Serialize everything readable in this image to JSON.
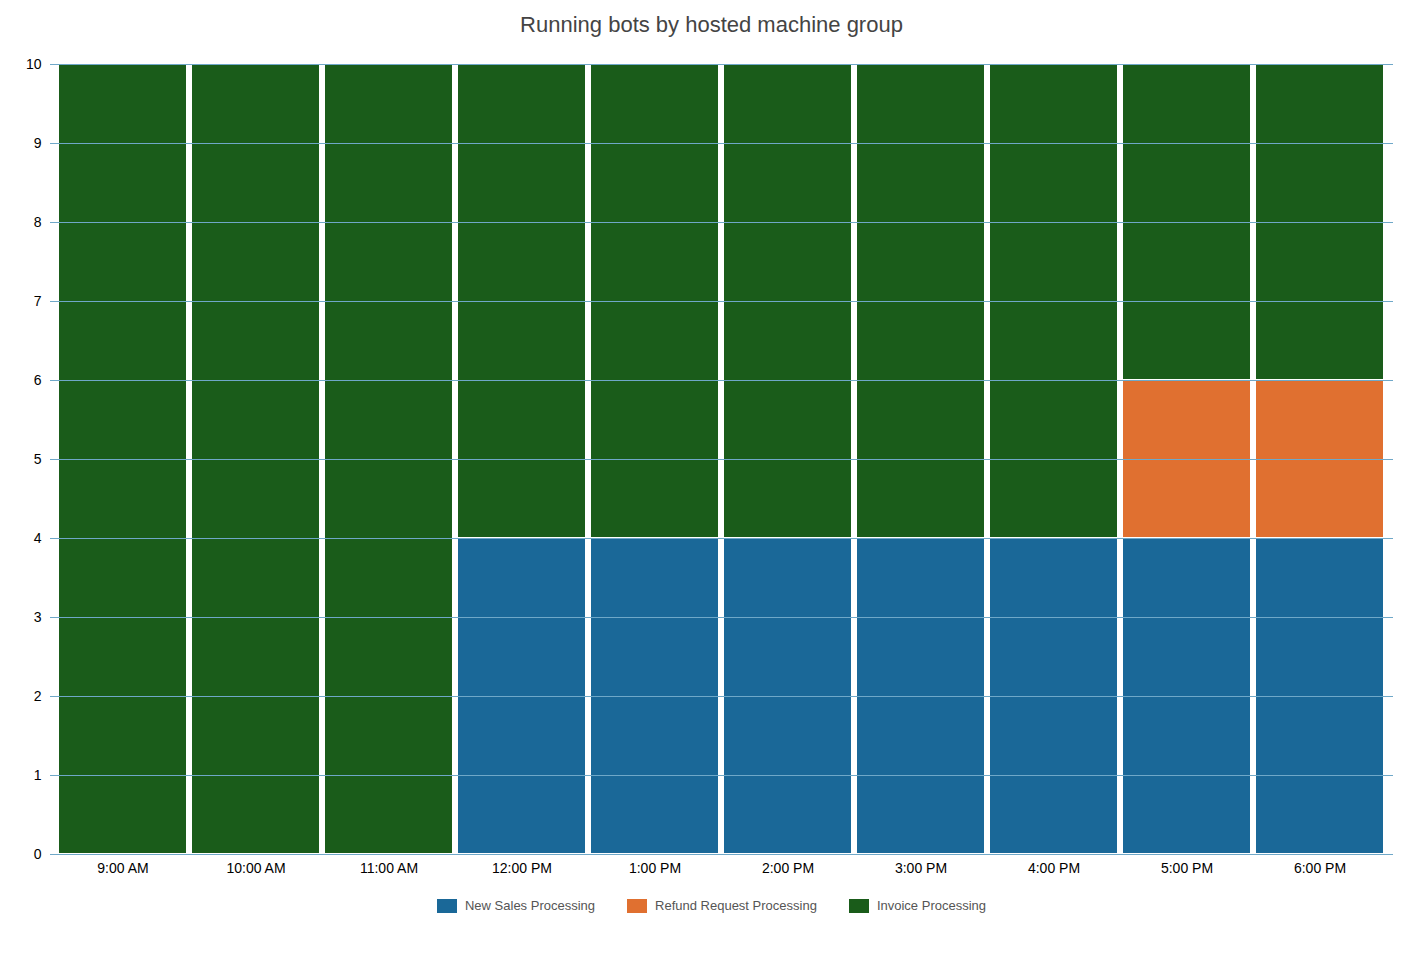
{
  "chart_data": {
    "type": "bar",
    "title": "Running bots by hosted machine group",
    "categories": [
      "9:00 AM",
      "10:00 AM",
      "11:00 AM",
      "12:00 PM",
      "1:00 PM",
      "2:00 PM",
      "3:00 PM",
      "4:00 PM",
      "5:00 PM",
      "6:00 PM"
    ],
    "series": [
      {
        "name": "New Sales Processing",
        "color": "#1a6898",
        "values": [
          0,
          0,
          0,
          4,
          4,
          4,
          4,
          4,
          4,
          4
        ]
      },
      {
        "name": "Refund Request Processing",
        "color": "#e07030",
        "values": [
          0,
          0,
          0,
          0,
          0,
          0,
          0,
          0,
          2,
          2
        ]
      },
      {
        "name": "Invoice Processing",
        "color": "#1a5c1a",
        "values": [
          10,
          10,
          10,
          6,
          6,
          6,
          6,
          6,
          4,
          4
        ]
      }
    ],
    "stacked": true,
    "ylim": [
      0,
      10
    ],
    "yticks": [
      0,
      1,
      2,
      3,
      4,
      5,
      6,
      7,
      8,
      9,
      10
    ],
    "grid": true,
    "legend": "bottom"
  }
}
